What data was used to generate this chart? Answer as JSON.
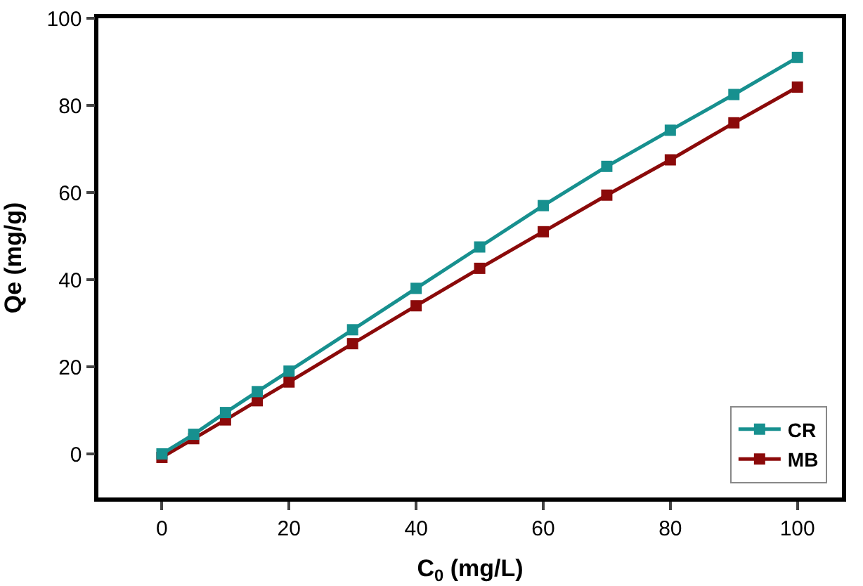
{
  "chart_data": {
    "type": "line",
    "xlabel": "C$_{0}$ (mg/L)",
    "ylabel": "Qe (mg/g)",
    "x": [
      0,
      5,
      10,
      15,
      20,
      30,
      40,
      50,
      60,
      70,
      80,
      90,
      100
    ],
    "series": [
      {
        "name": "CR",
        "color": "#17908f",
        "values": [
          0,
          4.5,
          9.5,
          14.3,
          19,
          28.5,
          38,
          47.5,
          57,
          66,
          74.3,
          82.5,
          91
        ]
      },
      {
        "name": "MB",
        "color": "#8b0a0a",
        "values": [
          -0.8,
          3.5,
          7.8,
          12.2,
          16.5,
          25.3,
          34,
          42.6,
          51,
          59.4,
          67.5,
          76,
          84.2
        ]
      }
    ],
    "xlim": [
      -10,
      107
    ],
    "ylim": [
      -10,
      100
    ],
    "xticks": [
      0,
      20,
      40,
      60,
      80,
      100
    ],
    "yticks": [
      0,
      20,
      40,
      60,
      80,
      100
    ],
    "legend": "bottom right",
    "marker": "square",
    "line_style": "solid"
  }
}
